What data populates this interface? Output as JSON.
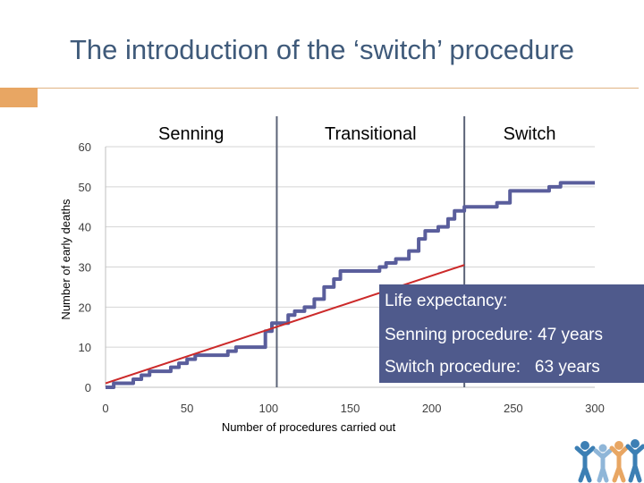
{
  "title": "The introduction of the ‘switch’ procedure",
  "info_box": {
    "heading": "Life expectancy:",
    "line1": "Senning procedure: 47 years",
    "line2": "Switch procedure:   63 years"
  },
  "chart_data": {
    "type": "line",
    "xlabel": "Number of procedures carried out",
    "ylabel": "Number of early deaths",
    "xlim": [
      0,
      300
    ],
    "ylim": [
      0,
      60
    ],
    "x_ticks": [
      0,
      50,
      100,
      150,
      200,
      250,
      300
    ],
    "y_ticks": [
      0,
      10,
      20,
      30,
      40,
      50,
      60
    ],
    "grid": "horizontal",
    "regions": [
      {
        "label": "Senning",
        "x_start": 0,
        "x_end": 105
      },
      {
        "label": "Transitional",
        "x_start": 105,
        "x_end": 220
      },
      {
        "label": "Switch",
        "x_start": 220,
        "x_end": 300
      }
    ],
    "region_dividers": [
      105,
      220
    ],
    "series": [
      {
        "type": "step",
        "color": "#5a5e9c",
        "x": [
          0,
          5,
          12,
          17,
          22,
          27,
          35,
          40,
          45,
          50,
          55,
          62,
          70,
          75,
          80,
          90,
          98,
          102,
          108,
          112,
          116,
          122,
          128,
          134,
          140,
          144,
          150,
          156,
          168,
          172,
          178,
          186,
          192,
          196,
          204,
          210,
          214,
          220,
          230,
          240,
          248,
          262,
          272,
          279,
          300
        ],
        "y": [
          0,
          1,
          1,
          2,
          3,
          4,
          4,
          5,
          6,
          7,
          8,
          8,
          8,
          9,
          10,
          10,
          14,
          16,
          16,
          18,
          19,
          20,
          22,
          25,
          27,
          29,
          29,
          29,
          30,
          31,
          32,
          34,
          37,
          39,
          40,
          42,
          44,
          45,
          45,
          46,
          49,
          49,
          50,
          51,
          51
        ]
      },
      {
        "type": "line",
        "color": "#cc2a2a",
        "x": [
          0,
          220
        ],
        "y": [
          1,
          30.5
        ]
      }
    ]
  },
  "colors": {
    "title": "#3f5a7a",
    "accent": "#e8a663",
    "step_line": "#5a5e9c",
    "trend_line": "#cc2a2a",
    "divider": "#5c6478",
    "info_box": "#4f5a8c"
  },
  "logo_icon": "people-group-icon"
}
